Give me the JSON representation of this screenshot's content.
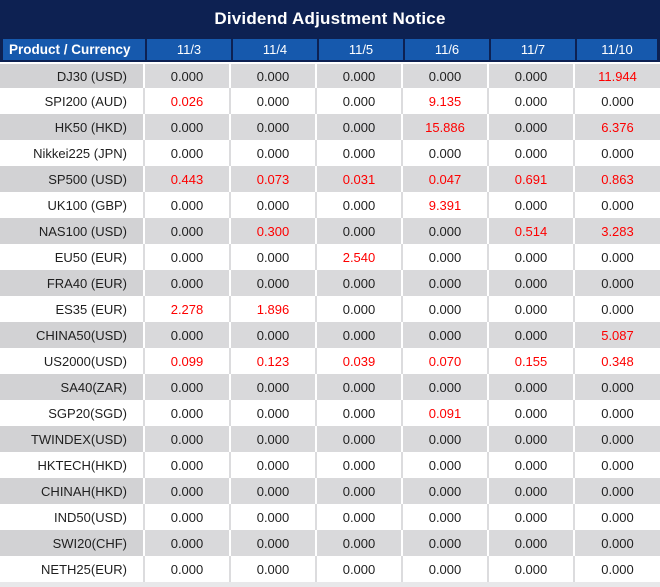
{
  "title": "Dividend Adjustment Notice",
  "table": {
    "product_header": "Product / Currency",
    "date_headers": [
      "11/3",
      "11/4",
      "11/5",
      "11/6",
      "11/7",
      "11/10"
    ],
    "rows": [
      {
        "product": "DJ30 (USD)",
        "values": [
          "0.000",
          "0.000",
          "0.000",
          "0.000",
          "0.000",
          "11.944"
        ],
        "red": [
          5
        ]
      },
      {
        "product": "SPI200 (AUD)",
        "values": [
          "0.026",
          "0.000",
          "0.000",
          "9.135",
          "0.000",
          "0.000"
        ],
        "red": [
          0,
          3
        ]
      },
      {
        "product": "HK50 (HKD)",
        "values": [
          "0.000",
          "0.000",
          "0.000",
          "15.886",
          "0.000",
          "6.376"
        ],
        "red": [
          3,
          5
        ]
      },
      {
        "product": "Nikkei225 (JPN)",
        "values": [
          "0.000",
          "0.000",
          "0.000",
          "0.000",
          "0.000",
          "0.000"
        ],
        "red": []
      },
      {
        "product": "SP500 (USD)",
        "values": [
          "0.443",
          "0.073",
          "0.031",
          "0.047",
          "0.691",
          "0.863"
        ],
        "red": [
          0,
          1,
          2,
          3,
          4,
          5
        ]
      },
      {
        "product": "UK100 (GBP)",
        "values": [
          "0.000",
          "0.000",
          "0.000",
          "9.391",
          "0.000",
          "0.000"
        ],
        "red": [
          3
        ]
      },
      {
        "product": "NAS100 (USD)",
        "values": [
          "0.000",
          "0.300",
          "0.000",
          "0.000",
          "0.514",
          "3.283"
        ],
        "red": [
          1,
          4,
          5
        ]
      },
      {
        "product": "EU50 (EUR)",
        "values": [
          "0.000",
          "0.000",
          "2.540",
          "0.000",
          "0.000",
          "0.000"
        ],
        "red": [
          2
        ]
      },
      {
        "product": "FRA40 (EUR)",
        "values": [
          "0.000",
          "0.000",
          "0.000",
          "0.000",
          "0.000",
          "0.000"
        ],
        "red": []
      },
      {
        "product": "ES35 (EUR)",
        "values": [
          "2.278",
          "1.896",
          "0.000",
          "0.000",
          "0.000",
          "0.000"
        ],
        "red": [
          0,
          1
        ]
      },
      {
        "product": "CHINA50(USD)",
        "values": [
          "0.000",
          "0.000",
          "0.000",
          "0.000",
          "0.000",
          "5.087"
        ],
        "red": [
          5
        ]
      },
      {
        "product": "US2000(USD)",
        "values": [
          "0.099",
          "0.123",
          "0.039",
          "0.070",
          "0.155",
          "0.348"
        ],
        "red": [
          0,
          1,
          2,
          3,
          4,
          5
        ]
      },
      {
        "product": "SA40(ZAR)",
        "values": [
          "0.000",
          "0.000",
          "0.000",
          "0.000",
          "0.000",
          "0.000"
        ],
        "red": []
      },
      {
        "product": "SGP20(SGD)",
        "values": [
          "0.000",
          "0.000",
          "0.000",
          "0.091",
          "0.000",
          "0.000"
        ],
        "red": [
          3
        ]
      },
      {
        "product": "TWINDEX(USD)",
        "values": [
          "0.000",
          "0.000",
          "0.000",
          "0.000",
          "0.000",
          "0.000"
        ],
        "red": []
      },
      {
        "product": "HKTECH(HKD)",
        "values": [
          "0.000",
          "0.000",
          "0.000",
          "0.000",
          "0.000",
          "0.000"
        ],
        "red": []
      },
      {
        "product": "CHINAH(HKD)",
        "values": [
          "0.000",
          "0.000",
          "0.000",
          "0.000",
          "0.000",
          "0.000"
        ],
        "red": []
      },
      {
        "product": "IND50(USD)",
        "values": [
          "0.000",
          "0.000",
          "0.000",
          "0.000",
          "0.000",
          "0.000"
        ],
        "red": []
      },
      {
        "product": "SWI20(CHF)",
        "values": [
          "0.000",
          "0.000",
          "0.000",
          "0.000",
          "0.000",
          "0.000"
        ],
        "red": []
      },
      {
        "product": "NETH25(EUR)",
        "values": [
          "0.000",
          "0.000",
          "0.000",
          "0.000",
          "0.000",
          "0.000"
        ],
        "red": []
      }
    ]
  },
  "colors": {
    "navy": "#0d2152",
    "header_blue": "#1659ad",
    "row_gray_values": "#d9d9db",
    "row_gray_product": "#d2d2d4",
    "row_white": "#ffffff",
    "grid_on_white_rows": "#dcdcde",
    "value_red": "#fe0000",
    "text_dark": "#1f1f1f",
    "header_text": "#ffffff",
    "bottom_strip": "#e8e8ea"
  },
  "chart_data": {
    "type": "table",
    "title": "Dividend Adjustment Notice",
    "columns": [
      "Product / Currency",
      "11/3",
      "11/4",
      "11/5",
      "11/6",
      "11/7",
      "11/10"
    ],
    "rows": [
      [
        "DJ30 (USD)",
        0.0,
        0.0,
        0.0,
        0.0,
        0.0,
        11.944
      ],
      [
        "SPI200 (AUD)",
        0.026,
        0.0,
        0.0,
        9.135,
        0.0,
        0.0
      ],
      [
        "HK50 (HKD)",
        0.0,
        0.0,
        0.0,
        15.886,
        0.0,
        6.376
      ],
      [
        "Nikkei225 (JPN)",
        0.0,
        0.0,
        0.0,
        0.0,
        0.0,
        0.0
      ],
      [
        "SP500 (USD)",
        0.443,
        0.073,
        0.031,
        0.047,
        0.691,
        0.863
      ],
      [
        "UK100 (GBP)",
        0.0,
        0.0,
        0.0,
        9.391,
        0.0,
        0.0
      ],
      [
        "NAS100 (USD)",
        0.0,
        0.3,
        0.0,
        0.0,
        0.514,
        3.283
      ],
      [
        "EU50 (EUR)",
        0.0,
        0.0,
        2.54,
        0.0,
        0.0,
        0.0
      ],
      [
        "FRA40 (EUR)",
        0.0,
        0.0,
        0.0,
        0.0,
        0.0,
        0.0
      ],
      [
        "ES35 (EUR)",
        2.278,
        1.896,
        0.0,
        0.0,
        0.0,
        0.0
      ],
      [
        "CHINA50(USD)",
        0.0,
        0.0,
        0.0,
        0.0,
        0.0,
        5.087
      ],
      [
        "US2000(USD)",
        0.099,
        0.123,
        0.039,
        0.07,
        0.155,
        0.348
      ],
      [
        "SA40(ZAR)",
        0.0,
        0.0,
        0.0,
        0.0,
        0.0,
        0.0
      ],
      [
        "SGP20(SGD)",
        0.0,
        0.0,
        0.0,
        0.091,
        0.0,
        0.0
      ],
      [
        "TWINDEX(USD)",
        0.0,
        0.0,
        0.0,
        0.0,
        0.0,
        0.0
      ],
      [
        "HKTECH(HKD)",
        0.0,
        0.0,
        0.0,
        0.0,
        0.0,
        0.0
      ],
      [
        "CHINAH(HKD)",
        0.0,
        0.0,
        0.0,
        0.0,
        0.0,
        0.0
      ],
      [
        "IND50(USD)",
        0.0,
        0.0,
        0.0,
        0.0,
        0.0,
        0.0
      ],
      [
        "SWI20(CHF)",
        0.0,
        0.0,
        0.0,
        0.0,
        0.0,
        0.0
      ],
      [
        "NETH25(EUR)",
        0.0,
        0.0,
        0.0,
        0.0,
        0.0,
        0.0
      ]
    ],
    "notes": "Non-zero dividend adjustment values are rendered in red; zeros in black. Rows alternate gray/white backgrounds starting with gray."
  }
}
